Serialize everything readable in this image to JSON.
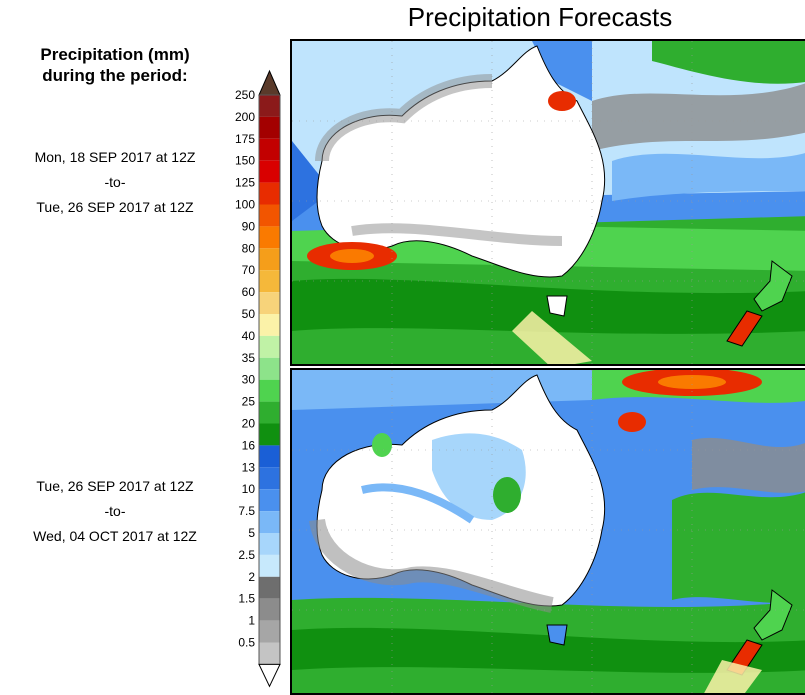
{
  "title": "Precipitation Forecasts",
  "legend": {
    "heading_line1": "Precipitation (mm)",
    "heading_line2": "during the period:",
    "levels": [
      "250",
      "200",
      "175",
      "150",
      "125",
      "100",
      "90",
      "80",
      "70",
      "60",
      "50",
      "40",
      "35",
      "30",
      "25",
      "20",
      "16",
      "13",
      "10",
      "7.5",
      "5",
      "2.5",
      "2",
      "1.5",
      "1",
      "0.5"
    ],
    "colors": [
      "#8b1a1a",
      "#a30000",
      "#c20000",
      "#d90000",
      "#e82c00",
      "#f25500",
      "#fa7a00",
      "#f59e1a",
      "#f5b83a",
      "#f7d37a",
      "#fbf2a8",
      "#c0f2a6",
      "#8de38a",
      "#4fd34f",
      "#2fae2f",
      "#109010",
      "#1a5fd6",
      "#2d72e0",
      "#4a90ee",
      "#7ab8f7",
      "#a7d6fb",
      "#c7e9fc",
      "#6e6e6e",
      "#8c8c8c",
      "#a6a6a6",
      "#c4c4c4"
    ],
    "top_arrow_color": "#5a3a2a",
    "bottom_arrow_color": "#ffffff"
  },
  "periods": [
    {
      "start": "Mon, 18 SEP 2017 at 12Z",
      "sep": "-to-",
      "end": "Tue, 26 SEP 2017 at 12Z"
    },
    {
      "start": "Tue, 26 SEP 2017 at 12Z",
      "sep": "-to-",
      "end": "Wed, 04 OCT 2017 at 12Z"
    }
  ]
}
